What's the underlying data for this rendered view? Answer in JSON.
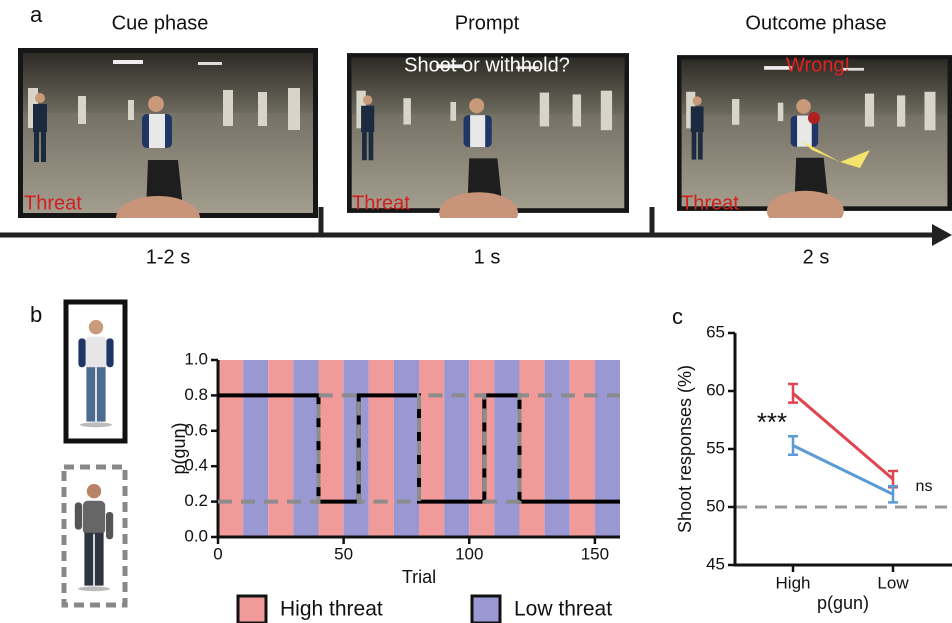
{
  "panel_a": {
    "label": "a",
    "phases": [
      {
        "title": "Cue phase",
        "tag": "Threat",
        "duration": "1-2 s"
      },
      {
        "title": "Prompt",
        "prompt": "Shoot or withhold?",
        "tag": "Threat",
        "duration": "1 s"
      },
      {
        "title": "Outcome phase",
        "feedback": "Wrong!",
        "tag": "Threat",
        "duration": "2 s"
      }
    ]
  },
  "panel_b": {
    "label": "b"
  },
  "panel_c": {
    "label": "c"
  },
  "chart_data": [
    {
      "type": "line",
      "xlabel": "Trial",
      "ylabel": "p(gun)",
      "x": [
        0,
        40,
        40,
        56,
        56,
        80,
        80,
        106,
        106,
        120,
        120,
        160
      ],
      "series": [
        {
          "color": "#000000",
          "dashed": false,
          "values": [
            0.8,
            0.8,
            0.2,
            0.2,
            0.8,
            0.8,
            0.2,
            0.2,
            0.8,
            0.8,
            0.2,
            0.2
          ]
        },
        {
          "color": "#8c8c8c",
          "dashed": true,
          "values": [
            0.2,
            0.2,
            0.8,
            0.8,
            0.2,
            0.2,
            0.8,
            0.8,
            0.2,
            0.2,
            0.8,
            0.8
          ]
        }
      ],
      "block_edges": [
        0,
        10,
        20,
        30,
        40,
        50,
        60,
        70,
        80,
        90,
        100,
        110,
        120,
        130,
        140,
        150,
        160
      ],
      "legend": [
        {
          "name": "High threat",
          "color": "#f19a9a"
        },
        {
          "name": "Low threat",
          "color": "#9a98d2"
        }
      ],
      "xlim": [
        0,
        160
      ],
      "xticks": [
        0,
        50,
        100,
        150
      ],
      "ylim": [
        0,
        1
      ],
      "yticks": [
        {
          "value": 0,
          "label": "0.0"
        },
        0.2,
        0.4,
        0.6,
        0.8,
        {
          "value": 1,
          "label": "1.0"
        }
      ]
    },
    {
      "type": "line",
      "xlabel": "p(gun)",
      "ylabel": "Shoot responses (%)",
      "categories": [
        "High",
        "Low"
      ],
      "series": [
        {
          "color": "#e0444f",
          "values": [
            59.8,
            52.4
          ],
          "errors": [
            0.8,
            0.7
          ]
        },
        {
          "color": "#5b9bd5",
          "values": [
            55.3,
            51.1
          ],
          "errors": [
            0.8,
            0.7
          ]
        }
      ],
      "reference_line": 50,
      "annotations": [
        "***",
        "ns"
      ],
      "ylim": [
        45,
        65
      ],
      "yticks": [
        45,
        50,
        55,
        60,
        65
      ]
    }
  ]
}
